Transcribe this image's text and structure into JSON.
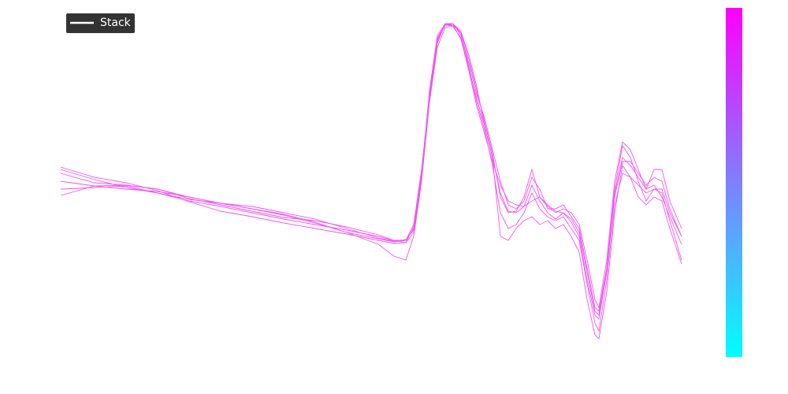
{
  "chart_data": {
    "type": "line",
    "x": [
      77,
      120,
      160,
      200,
      240,
      280,
      320,
      360,
      400,
      440,
      480,
      500,
      515,
      525,
      535,
      545,
      555,
      565,
      575,
      585,
      595,
      605,
      615,
      625,
      635,
      645,
      655,
      665,
      675,
      685,
      695,
      705,
      715,
      725,
      735,
      745,
      755,
      760,
      770,
      780,
      790,
      800,
      810,
      820,
      830,
      840,
      850,
      865
    ],
    "xlim": [
      77,
      865
    ],
    "ylim": [
      0,
      500
    ],
    "grid": false,
    "legend": {
      "label": "Stack",
      "corner": "upper left",
      "color": "#ffffff"
    },
    "colorbar": {
      "colors": [
        "#00ffff",
        "#ff00ff"
      ]
    },
    "series": [
      {
        "color": "#ee55ee",
        "values": [
          285,
          272,
          262,
          255,
          245,
          238,
          230,
          222,
          215,
          208,
          200,
          195,
          195,
          210,
          280,
          380,
          450,
          468,
          470,
          455,
          420,
          380,
          350,
          310,
          270,
          240,
          235,
          245,
          275,
          260,
          235,
          235,
          240,
          225,
          210,
          160,
          110,
          105,
          160,
          260,
          315,
          300,
          270,
          245,
          260,
          260,
          230,
          200
        ]
      },
      {
        "color": "#ee55ee",
        "values": [
          252,
          264,
          265,
          260,
          250,
          242,
          235,
          228,
          218,
          205,
          190,
          175,
          170,
          200,
          270,
          370,
          440,
          465,
          468,
          460,
          430,
          390,
          340,
          300,
          200,
          195,
          210,
          220,
          225,
          215,
          220,
          210,
          215,
          200,
          180,
          120,
          75,
          70,
          130,
          230,
          290,
          275,
          250,
          240,
          250,
          245,
          210,
          165
        ]
      },
      {
        "color": "#ee55ee",
        "values": [
          280,
          268,
          265,
          260,
          248,
          240,
          232,
          224,
          220,
          212,
          202,
          195,
          192,
          205,
          275,
          385,
          455,
          470,
          470,
          460,
          425,
          385,
          345,
          305,
          250,
          230,
          232,
          250,
          285,
          250,
          238,
          230,
          235,
          230,
          215,
          170,
          120,
          110,
          170,
          270,
          320,
          310,
          285,
          260,
          285,
          285,
          245,
          210
        ]
      },
      {
        "color": "#ee55ee",
        "values": [
          270,
          264,
          260,
          257,
          250,
          242,
          235,
          227,
          217,
          205,
          197,
          193,
          195,
          215,
          285,
          375,
          445,
          470,
          468,
          450,
          410,
          365,
          330,
          295,
          265,
          245,
          240,
          238,
          265,
          245,
          230,
          222,
          230,
          218,
          200,
          145,
          100,
          95,
          155,
          255,
          300,
          290,
          275,
          260,
          265,
          250,
          225,
          190
        ]
      },
      {
        "color": "#ee55ee",
        "values": [
          288,
          275,
          268,
          258,
          244,
          232,
          225,
          217,
          210,
          203,
          195,
          191,
          192,
          212,
          278,
          372,
          448,
          468,
          468,
          458,
          415,
          370,
          335,
          290,
          230,
          210,
          215,
          230,
          255,
          235,
          225,
          220,
          225,
          210,
          195,
          140,
          90,
          80,
          145,
          240,
          280,
          275,
          265,
          255,
          260,
          255,
          220,
          170
        ]
      },
      {
        "color": "#ee55ee",
        "values": [
          260,
          262,
          264,
          255,
          247,
          242,
          238,
          230,
          222,
          210,
          198,
          194,
          196,
          208,
          282,
          382,
          452,
          469,
          466,
          452,
          412,
          375,
          340,
          300,
          255,
          232,
          230,
          238,
          245,
          250,
          240,
          232,
          230,
          222,
          205,
          155,
          105,
          100,
          160,
          250,
          295,
          295,
          280,
          265,
          275,
          270,
          235,
          200
        ]
      }
    ]
  }
}
